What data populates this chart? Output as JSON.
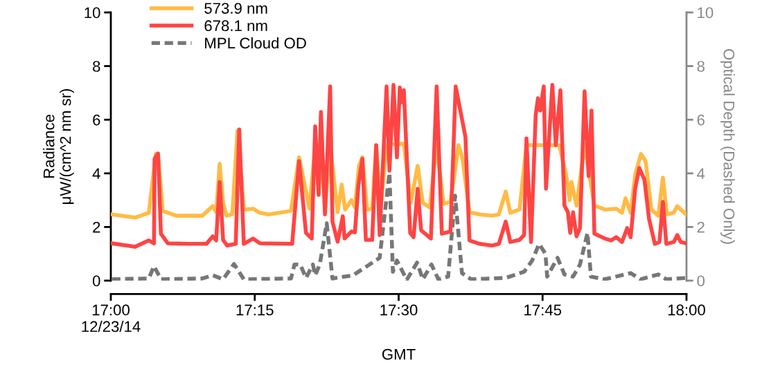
{
  "chart_data": {
    "type": "line",
    "xlabel": "GMT",
    "ylabel": "Radiance\nμW/(cm^2 nm sr)",
    "y2label": "Optical Depth (Dashed Only)",
    "xlim": [
      17,
      18
    ],
    "xticks": [
      {
        "value": 17,
        "label": "17:00\n12/23/14"
      },
      {
        "value": 17.25,
        "label": "17:15"
      },
      {
        "value": 17.5,
        "label": "17:30"
      },
      {
        "value": 17.75,
        "label": "17:45"
      },
      {
        "value": 18,
        "label": "18:00"
      }
    ],
    "ylim": [
      0,
      10
    ],
    "yticks": [
      0,
      2,
      4,
      6,
      8,
      10
    ],
    "y2lim": [
      0,
      10
    ],
    "y2ticks": [
      0,
      2,
      4,
      6,
      8,
      10
    ],
    "grid": false,
    "legend": "top left",
    "marker": "none",
    "series": [
      {
        "name": "573.9 nm",
        "color": "#ffbb44",
        "line_style": "solid",
        "x": [
          17.002,
          17.042,
          17.066,
          17.078,
          17.082,
          17.09,
          17.114,
          17.159,
          17.177,
          17.183,
          17.189,
          17.195,
          17.201,
          17.211,
          17.22,
          17.231,
          17.247,
          17.259,
          17.274,
          17.313,
          17.327,
          17.345,
          17.355,
          17.361,
          17.365,
          17.372,
          17.381,
          17.394,
          17.401,
          17.407,
          17.418,
          17.424,
          17.431,
          17.437,
          17.445,
          17.454,
          17.461,
          17.469,
          17.479,
          17.493,
          17.509,
          17.521,
          17.533,
          17.542,
          17.554,
          17.566,
          17.578,
          17.59,
          17.604,
          17.611,
          17.623,
          17.641,
          17.662,
          17.674,
          17.686,
          17.694,
          17.71,
          17.722,
          17.734,
          17.779,
          17.791,
          17.797,
          17.8,
          17.809,
          17.823,
          17.84,
          17.858,
          17.878,
          17.888,
          17.894,
          17.903,
          17.911,
          17.921,
          17.929,
          17.939,
          17.951,
          17.959,
          17.966,
          17.978,
          17.984,
          17.999
        ],
        "values": [
          2.47,
          2.35,
          2.53,
          4.72,
          4.72,
          2.6,
          2.42,
          2.42,
          2.78,
          2.55,
          4.36,
          2.9,
          2.42,
          2.47,
          5.57,
          2.65,
          2.68,
          2.53,
          2.47,
          2.6,
          4.6,
          2.68,
          5.05,
          3.2,
          5.05,
          2.6,
          5.05,
          2.55,
          3.58,
          2.65,
          3.0,
          2.73,
          4.28,
          4.6,
          2.65,
          2.68,
          5.05,
          2.8,
          5.05,
          5.1,
          5.1,
          2.9,
          4.28,
          2.9,
          2.73,
          5.05,
          2.86,
          2.94,
          5.05,
          4.54,
          2.55,
          2.47,
          2.42,
          2.47,
          3.32,
          2.53,
          2.65,
          5.05,
          5.05,
          5.05,
          3.94,
          3.0,
          3.68,
          2.8,
          5.05,
          2.8,
          2.65,
          2.68,
          2.53,
          3.07,
          2.53,
          3.97,
          4.72,
          4.46,
          2.65,
          2.42,
          3.84,
          2.47,
          2.53,
          2.78,
          2.47
        ]
      },
      {
        "name": "678.1 nm",
        "color": "#ff4444",
        "line_style": "solid",
        "x": [
          17.002,
          17.042,
          17.066,
          17.075,
          17.076,
          17.082,
          17.087,
          17.099,
          17.135,
          17.166,
          17.177,
          17.183,
          17.189,
          17.195,
          17.202,
          17.217,
          17.223,
          17.231,
          17.247,
          17.259,
          17.315,
          17.327,
          17.339,
          17.349,
          17.355,
          17.361,
          17.365,
          17.372,
          17.381,
          17.385,
          17.394,
          17.403,
          17.406,
          17.418,
          17.424,
          17.43,
          17.437,
          17.443,
          17.454,
          17.461,
          17.467,
          17.479,
          17.484,
          17.491,
          17.497,
          17.502,
          17.505,
          17.509,
          17.52,
          17.526,
          17.533,
          17.539,
          17.556,
          17.566,
          17.575,
          17.59,
          17.599,
          17.616,
          17.623,
          17.641,
          17.662,
          17.674,
          17.686,
          17.694,
          17.71,
          17.718,
          17.722,
          17.73,
          17.738,
          17.742,
          17.746,
          17.752,
          17.756,
          17.767,
          17.773,
          17.781,
          17.788,
          17.794,
          17.798,
          17.803,
          17.809,
          17.815,
          17.823,
          17.83,
          17.835,
          17.84,
          17.858,
          17.869,
          17.878,
          17.888,
          17.897,
          17.903,
          17.911,
          17.918,
          17.927,
          17.935,
          17.945,
          17.953,
          17.959,
          17.965,
          17.978,
          17.984,
          17.99,
          18.0
        ],
        "values": [
          1.39,
          1.26,
          1.5,
          1.39,
          4.54,
          4.74,
          1.75,
          1.39,
          1.37,
          1.37,
          1.65,
          1.5,
          3.68,
          1.52,
          1.31,
          1.37,
          5.64,
          1.37,
          1.57,
          1.39,
          1.37,
          4.46,
          1.78,
          1.57,
          5.75,
          3.2,
          6.29,
          2.47,
          7.24,
          2.2,
          1.45,
          2.4,
          1.57,
          1.83,
          1.8,
          3.55,
          4.54,
          1.52,
          1.52,
          5.05,
          1.7,
          7.24,
          4.1,
          7.3,
          4.6,
          7.2,
          6.65,
          7.1,
          1.78,
          1.62,
          3.43,
          1.88,
          1.57,
          7.24,
          1.75,
          1.83,
          7.24,
          5.36,
          1.5,
          1.37,
          1.31,
          1.37,
          2.2,
          1.44,
          1.52,
          1.7,
          5.3,
          1.44,
          6.16,
          6.8,
          6.34,
          7.24,
          3.43,
          7.3,
          5.05,
          7.1,
          2.8,
          2.55,
          1.78,
          2.55,
          1.65,
          1.96,
          7.06,
          3.9,
          6.34,
          1.75,
          1.57,
          1.5,
          1.62,
          1.44,
          1.96,
          1.62,
          3.45,
          4.2,
          3.76,
          2.3,
          1.37,
          1.44,
          2.94,
          1.37,
          1.44,
          1.7,
          1.44,
          1.39
        ]
      },
      {
        "name": "MPL Cloud OD",
        "color": "#777777",
        "line_style": "dashed",
        "axis": "y2",
        "x": [
          17.002,
          17.066,
          17.075,
          17.087,
          17.159,
          17.177,
          17.195,
          17.214,
          17.231,
          17.313,
          17.319,
          17.329,
          17.339,
          17.351,
          17.355,
          17.363,
          17.375,
          17.385,
          17.421,
          17.467,
          17.484,
          17.49,
          17.497,
          17.514,
          17.532,
          17.542,
          17.557,
          17.569,
          17.586,
          17.598,
          17.61,
          17.626,
          17.686,
          17.718,
          17.732,
          17.744,
          17.755,
          17.758,
          17.776,
          17.788,
          17.803,
          17.815,
          17.828,
          17.834,
          17.858,
          17.903,
          17.92,
          17.951,
          17.965,
          18.0
        ],
        "values": [
          0.05,
          0.08,
          0.54,
          0.05,
          0.08,
          0.2,
          0.05,
          0.62,
          0.05,
          0.08,
          0.6,
          0.6,
          0.1,
          0.6,
          0.2,
          0.6,
          2.14,
          0.08,
          0.2,
          0.85,
          4.02,
          0.33,
          0.75,
          0.03,
          0.67,
          0.05,
          0.6,
          0.05,
          0.15,
          3.17,
          0.28,
          0.05,
          0.1,
          0.33,
          0.75,
          1.37,
          1.0,
          0.15,
          0.85,
          0.23,
          0.15,
          0.6,
          1.78,
          0.15,
          0.05,
          0.28,
          0.05,
          0.23,
          0.05,
          0.1
        ]
      }
    ]
  }
}
